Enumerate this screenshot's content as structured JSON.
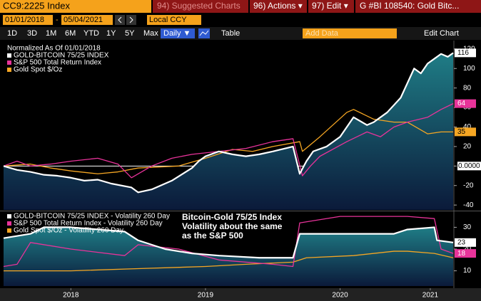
{
  "toolbar": {
    "ticker": "CC9:2225 Index",
    "suggested": "94) Suggested Charts",
    "actions": "96) Actions ▾",
    "edit": "97) Edit ▾",
    "chart_name": "G #BI 108540: Gold Bitc...",
    "start_date": "01/01/2018",
    "date_separator": "-",
    "end_date": "05/04/2021",
    "currency": "Local CCY",
    "periods": [
      "1D",
      "3D",
      "1M",
      "6M",
      "YTD",
      "1Y",
      "5Y",
      "Max"
    ],
    "frequency": "Daily ▼",
    "table": "Table",
    "add_data": "Add Data",
    "edit_chart": "Edit Chart"
  },
  "chart_data": [
    {
      "type": "line",
      "note": "Normalized As Of 01/01/2018",
      "xlim": [
        2018,
        2021.34
      ],
      "ylim": [
        -45,
        125
      ],
      "yticks": [
        -40,
        -20,
        {
          "value": 0,
          "label": "0.0000"
        },
        20,
        40,
        60,
        80,
        100,
        120
      ],
      "reference_line": 0,
      "series": [
        {
          "name": "GOLD-BITCOIN 75/25 INDEX",
          "color": "#ffffff",
          "area": true,
          "last_label": true,
          "x": [
            2018,
            2018.1,
            2018.2,
            2018.3,
            2018.4,
            2018.5,
            2018.6,
            2018.7,
            2018.8,
            2018.95,
            2019.0,
            2019.1,
            2019.25,
            2019.4,
            2019.45,
            2019.5,
            2019.6,
            2019.7,
            2019.8,
            2019.9,
            2020.0,
            2020.15,
            2020.2,
            2020.25,
            2020.3,
            2020.4,
            2020.5,
            2020.6,
            2020.7,
            2020.75,
            2020.85,
            2020.95,
            2021.0,
            2021.05,
            2021.1,
            2021.15,
            2021.2,
            2021.25,
            2021.3,
            2021.34
          ],
          "values": [
            0,
            -4,
            -6,
            -9,
            -10,
            -12,
            -15,
            -14,
            -18,
            -22,
            -27,
            -24,
            -15,
            -2,
            5,
            10,
            15,
            12,
            10,
            12,
            15,
            20,
            -8,
            5,
            15,
            20,
            30,
            50,
            42,
            45,
            55,
            70,
            85,
            100,
            95,
            105,
            110,
            115,
            112,
            116
          ]
        },
        {
          "name": "S&P 500 Total Return Index",
          "color": "#e8339a",
          "last_label": true,
          "x": [
            2018,
            2018.1,
            2018.2,
            2018.35,
            2018.5,
            2018.7,
            2018.85,
            2018.95,
            2019.1,
            2019.25,
            2019.4,
            2019.6,
            2019.8,
            2020.0,
            2020.15,
            2020.22,
            2020.28,
            2020.35,
            2020.55,
            2020.7,
            2020.8,
            2020.9,
            2021.0,
            2021.15,
            2021.25,
            2021.34
          ],
          "values": [
            0,
            5,
            0,
            2,
            5,
            8,
            2,
            -12,
            0,
            8,
            12,
            15,
            18,
            25,
            28,
            -10,
            0,
            10,
            25,
            35,
            30,
            40,
            45,
            50,
            58,
            64
          ]
        },
        {
          "name": "Gold Spot $/Oz",
          "color": "#f5a623",
          "last_label": true,
          "x": [
            2018,
            2018.2,
            2018.35,
            2018.5,
            2018.7,
            2018.85,
            2019.0,
            2019.3,
            2019.5,
            2019.7,
            2019.85,
            2020.0,
            2020.2,
            2020.22,
            2020.35,
            2020.55,
            2020.6,
            2020.75,
            2020.9,
            2021.0,
            2021.15,
            2021.25,
            2021.34
          ],
          "values": [
            0,
            2,
            -2,
            -5,
            -8,
            -6,
            -2,
            0,
            8,
            17,
            15,
            20,
            25,
            15,
            30,
            55,
            58,
            48,
            45,
            45,
            33,
            35,
            35
          ]
        }
      ]
    },
    {
      "type": "line",
      "xlim": [
        2018,
        2021.34
      ],
      "ylim": [
        3,
        37
      ],
      "yticks": [
        10,
        20,
        30
      ],
      "xticks": [
        {
          "value": 2018.5,
          "label": "2018"
        },
        {
          "value": 2019.5,
          "label": "2019"
        },
        {
          "value": 2020.5,
          "label": "2020"
        },
        {
          "value": 2021.17,
          "label": "2021"
        }
      ],
      "annotation": [
        "Bitcoin-Gold 75/25 Index",
        "Volatility about the same",
        "as the S&P 500"
      ],
      "series": [
        {
          "name": "GOLD-BITCOIN 75/25 INDEX - Volatility 260 Day",
          "color": "#ffffff",
          "area": true,
          "last_label": true,
          "x": [
            2018,
            2018.2,
            2018.3,
            2018.5,
            2018.9,
            2019.0,
            2019.2,
            2019.4,
            2019.6,
            2019.9,
            2020.15,
            2020.2,
            2020.5,
            2020.9,
            2021.0,
            2021.2,
            2021.22,
            2021.34
          ],
          "values": [
            25,
            27,
            30,
            30,
            28,
            24,
            20,
            18,
            17,
            16,
            16,
            27,
            27,
            27,
            29,
            30,
            24,
            23
          ]
        },
        {
          "name": "S&P 500 Total Return Index - Volatility 260 Day",
          "color": "#e8339a",
          "last_label": true,
          "x": [
            2018,
            2018.1,
            2018.2,
            2018.5,
            2018.9,
            2019.0,
            2019.3,
            2019.6,
            2020.0,
            2020.15,
            2020.2,
            2020.5,
            2021.0,
            2021.2,
            2021.25,
            2021.34
          ],
          "values": [
            12,
            13,
            23,
            20,
            17,
            22,
            20,
            15,
            13,
            12,
            32,
            35,
            35,
            34,
            20,
            18
          ]
        },
        {
          "name": "Gold Spot $/Oz - Volatility 260 Day",
          "color": "#f5a623",
          "x": [
            2018,
            2018.5,
            2019.0,
            2019.5,
            2019.8,
            2020.15,
            2020.25,
            2020.6,
            2020.9,
            2021.0,
            2021.2,
            2021.34
          ],
          "values": [
            10,
            10,
            11,
            12,
            13,
            14,
            16,
            17,
            19,
            19,
            18,
            16
          ]
        }
      ]
    }
  ]
}
